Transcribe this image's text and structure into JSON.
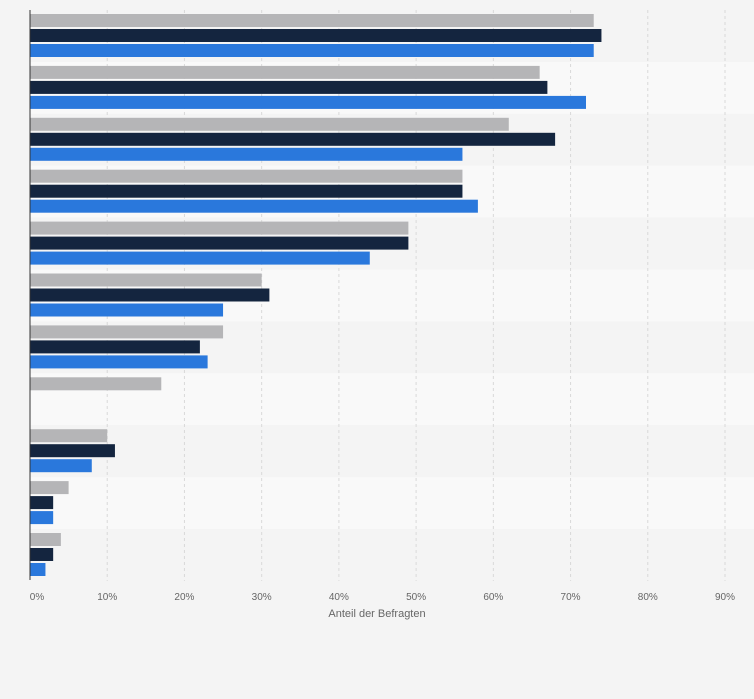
{
  "chart_data": {
    "type": "bar",
    "orientation": "horizontal",
    "xlabel": "Anteil der Befragten",
    "x_ticks": [
      "0%",
      "10%",
      "20%",
      "30%",
      "40%",
      "50%",
      "60%",
      "70%",
      "80%",
      "90%"
    ],
    "xlim": [
      0,
      90
    ],
    "grid": true,
    "categories": [
      "",
      "",
      "",
      "",
      "",
      "",
      "",
      "",
      "",
      "",
      ""
    ],
    "series": [
      {
        "color": "#b5b5b7",
        "values": [
          73,
          66,
          62,
          56,
          49,
          30,
          25,
          17,
          10,
          5,
          4
        ]
      },
      {
        "color": "#14253f",
        "values": [
          74,
          67,
          68,
          56,
          49,
          31,
          22,
          null,
          11,
          3,
          3
        ]
      },
      {
        "color": "#2a78dc",
        "values": [
          73,
          72,
          56,
          58,
          44,
          25,
          23,
          null,
          8,
          3,
          2
        ]
      }
    ]
  }
}
